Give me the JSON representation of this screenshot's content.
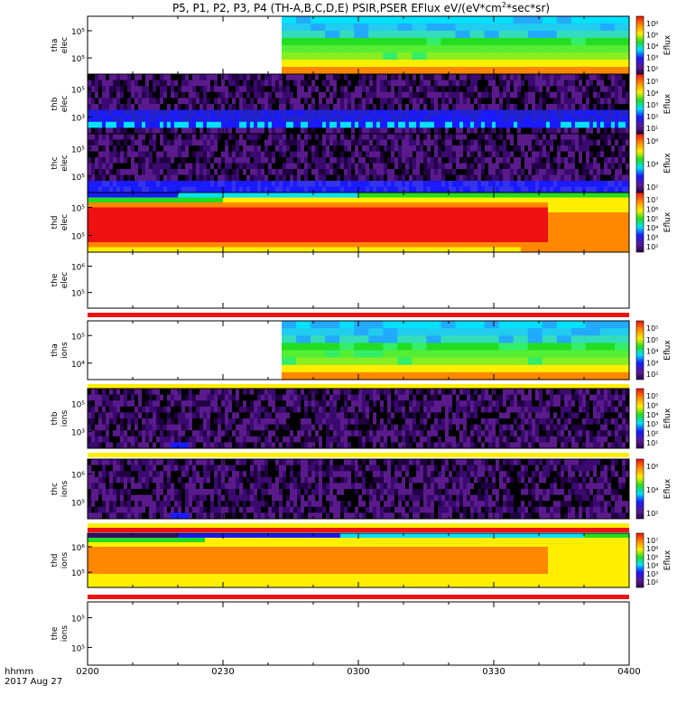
{
  "title_parts": {
    "probes": "P5, P1, P2, P3, P4",
    "missions": "(TH-A,B,C,D,E)",
    "products": "PSIR,PSER",
    "quantity": "EFlux eV/(eV*cm",
    "sup": "2",
    "tail": "*sec*sr)"
  },
  "time_axis": {
    "label_line1": "hhmm",
    "label_line2": "2017 Aug 27",
    "ticks": [
      "0200",
      "0230",
      "0300",
      "0330",
      "0400"
    ],
    "range_minutes": [
      0,
      120
    ]
  },
  "colorbar_label": "Eflux",
  "colors": {
    "black": "#000000",
    "purple": "#5a1a8c",
    "blue": "#1a1aff",
    "cyan": "#00e0ff",
    "green": "#22dd22",
    "yellow": "#ffee00",
    "orange": "#ff8800",
    "red": "#ee1111"
  },
  "chart_data": {
    "type": "heatmap",
    "x_unit": "minutes after 02:00 UT",
    "panels": [
      {
        "probe_label": "tha",
        "species_label": "elec",
        "y_ticks": [
          "10⁵",
          "10⁵"
        ],
        "cbar_ticks": [
          "10⁶",
          "10⁵",
          "10⁴",
          "10³",
          "10²"
        ],
        "data_start_minute": 43,
        "pattern": "tha",
        "bars": []
      },
      {
        "probe_label": "thb",
        "species_label": "elec",
        "y_ticks": [
          "10⁵",
          "10³"
        ],
        "cbar_ticks": [
          "10⁵",
          "10⁴",
          "10³",
          "10²",
          "10¹"
        ],
        "data_start_minute": 0,
        "pattern": "noise_blue",
        "bars": []
      },
      {
        "probe_label": "thc",
        "species_label": "elec",
        "y_ticks": [
          "10⁵",
          "10⁵"
        ],
        "cbar_ticks": [
          "10⁶",
          "10⁴",
          "10²"
        ],
        "data_start_minute": 0,
        "pattern": "noise_blue2",
        "bars": []
      },
      {
        "probe_label": "thd",
        "species_label": "elec",
        "y_ticks": [
          "10⁵",
          "10⁵"
        ],
        "cbar_ticks": [
          "10⁷",
          "10⁶",
          "10⁵",
          "10⁴",
          "10³",
          "10²"
        ],
        "data_start_minute": 0,
        "pattern": "thd_elec",
        "bars": []
      },
      {
        "probe_label": "the",
        "species_label": "elec",
        "y_ticks": [
          "10⁶",
          "10⁵"
        ],
        "cbar_ticks": [],
        "data_start_minute": null,
        "pattern": "empty",
        "bars": [
          "red"
        ]
      },
      {
        "probe_label": "tha",
        "species_label": "ions",
        "y_ticks": [
          "10⁵",
          "10⁴"
        ],
        "cbar_ticks": [
          "10⁵",
          "10⁵",
          "10⁴",
          "10³",
          "10²"
        ],
        "data_start_minute": 43,
        "pattern": "tha",
        "bars": [
          "yellow"
        ]
      },
      {
        "probe_label": "thb",
        "species_label": "ions",
        "y_ticks": [
          "10⁵",
          "10³"
        ],
        "cbar_ticks": [
          "10⁵",
          "10⁵",
          "10⁴",
          "10³",
          "10²",
          "10¹"
        ],
        "data_start_minute": 0,
        "pattern": "noise_ion",
        "bars": [
          "yellow"
        ]
      },
      {
        "probe_label": "thc",
        "species_label": "ions",
        "y_ticks": [
          "10⁶",
          "10⁵"
        ],
        "cbar_ticks": [
          "10⁶",
          "10⁴",
          "10²"
        ],
        "data_start_minute": 0,
        "pattern": "noise_ion2",
        "bars": [
          "yellow",
          "red"
        ]
      },
      {
        "probe_label": "thd",
        "species_label": "ions",
        "y_ticks": [
          "10⁶",
          "10⁵"
        ],
        "cbar_ticks": [
          "10⁷",
          "10⁶",
          "10⁵",
          "10⁴",
          "10³",
          "10²"
        ],
        "data_start_minute": 0,
        "pattern": "thd_ions",
        "bars": [
          "red"
        ]
      },
      {
        "probe_label": "the",
        "species_label": "ions",
        "y_ticks": [
          "10⁵",
          "10⁵"
        ],
        "cbar_ticks": [],
        "data_start_minute": null,
        "pattern": "empty",
        "bars": []
      }
    ]
  }
}
